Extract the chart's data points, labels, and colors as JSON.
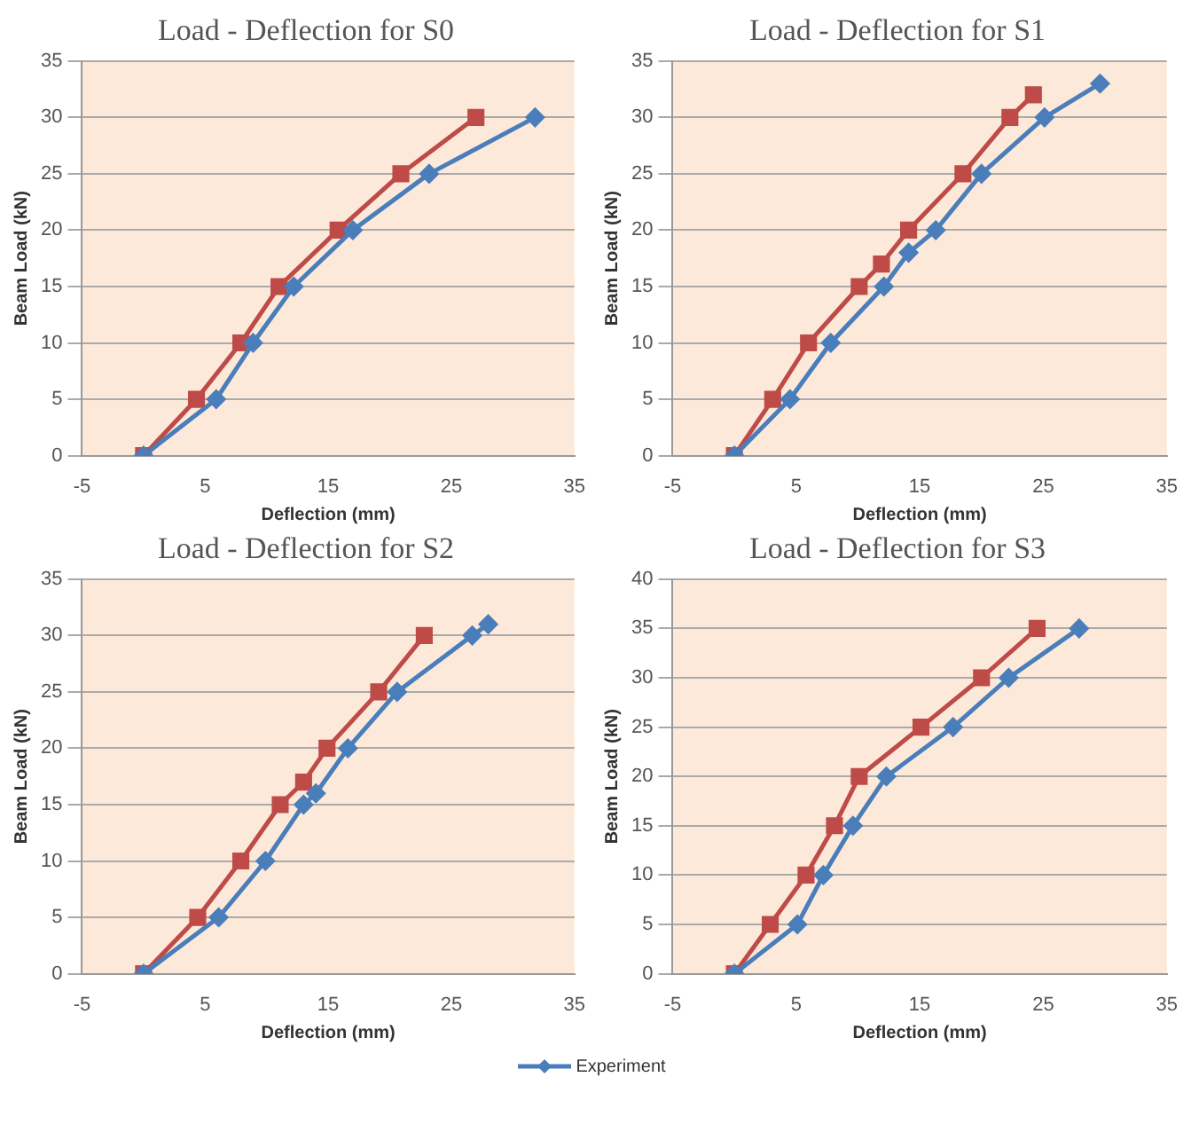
{
  "chart_data": [
    {
      "type": "line",
      "title": "Load - Deflection for S0",
      "xlabel": "Deflection (mm)",
      "ylabel": "Beam Load (kN)",
      "xlim": [
        -5,
        35
      ],
      "xticks": [
        -5,
        5,
        15,
        25,
        35
      ],
      "ylim": [
        0,
        35
      ],
      "yticks": [
        0,
        5,
        10,
        15,
        20,
        25,
        30,
        35
      ],
      "grid": "y",
      "series": [
        {
          "color": "#4a7ebb",
          "marker": "diamond",
          "x": [
            0,
            5.9,
            8.9,
            12.2,
            17,
            23.2,
            31.8
          ],
          "values": [
            0,
            5,
            10,
            15,
            20,
            25,
            30
          ]
        },
        {
          "color": "#be4b48",
          "marker": "square",
          "x": [
            0,
            4.3,
            7.9,
            11,
            15.8,
            20.9,
            27
          ],
          "values": [
            0,
            5,
            10,
            15,
            20,
            25,
            30
          ]
        }
      ]
    },
    {
      "type": "line",
      "title": "Load - Deflection for S1",
      "xlabel": "Deflection (mm)",
      "ylabel": "Beam Load (kN)",
      "xlim": [
        -5,
        35
      ],
      "xticks": [
        -5,
        5,
        15,
        25,
        35
      ],
      "ylim": [
        0,
        35
      ],
      "yticks": [
        0,
        5,
        10,
        15,
        20,
        25,
        30,
        35
      ],
      "grid": "y",
      "series": [
        {
          "color": "#4a7ebb",
          "marker": "diamond",
          "x": [
            0,
            4.5,
            7.8,
            12.1,
            14.1,
            16.3,
            20,
            25.1,
            29.6
          ],
          "values": [
            0,
            5,
            10,
            15,
            18,
            20,
            25,
            30,
            33
          ]
        },
        {
          "color": "#be4b48",
          "marker": "square",
          "x": [
            0,
            3.1,
            6,
            10.1,
            11.9,
            14.1,
            18.5,
            22.3,
            24.2
          ],
          "values": [
            0,
            5,
            10,
            15,
            17,
            20,
            25,
            30,
            32
          ]
        }
      ]
    },
    {
      "type": "line",
      "title": "Load - Deflection for S2",
      "xlabel": "Deflection (mm)",
      "ylabel": "Beam Load (kN)",
      "xlim": [
        -5,
        35
      ],
      "xticks": [
        -5,
        5,
        15,
        25,
        35
      ],
      "ylim": [
        0,
        35
      ],
      "yticks": [
        0,
        5,
        10,
        15,
        20,
        25,
        30,
        35
      ],
      "grid": "y",
      "series": [
        {
          "color": "#4a7ebb",
          "marker": "diamond",
          "x": [
            0,
            6.1,
            9.9,
            13,
            14,
            16.6,
            20.6,
            26.7,
            28
          ],
          "values": [
            0,
            5,
            10,
            15,
            16,
            20,
            25,
            30,
            31
          ]
        },
        {
          "color": "#be4b48",
          "marker": "square",
          "x": [
            0,
            4.4,
            7.9,
            11.1,
            13,
            14.9,
            19.1,
            22.8
          ],
          "values": [
            0,
            5,
            10,
            15,
            17,
            20,
            25,
            30
          ]
        }
      ]
    },
    {
      "type": "line",
      "title": "Load - Deflection for S3",
      "xlabel": "Deflection (mm)",
      "ylabel": "Beam Load (kN)",
      "xlim": [
        -5,
        35
      ],
      "xticks": [
        -5,
        5,
        15,
        25,
        35
      ],
      "ylim": [
        0,
        40
      ],
      "yticks": [
        0,
        5,
        10,
        15,
        20,
        25,
        30,
        35,
        40
      ],
      "grid": "y",
      "legend": "bottom",
      "series": [
        {
          "name": "Experiment",
          "color": "#4a7ebb",
          "marker": "diamond",
          "x": [
            0,
            5.1,
            7.2,
            9.6,
            12.3,
            17.7,
            22.2,
            27.9
          ],
          "values": [
            0,
            5,
            10,
            15,
            20,
            25,
            30,
            35
          ]
        },
        {
          "color": "#be4b48",
          "marker": "square",
          "x": [
            0,
            2.9,
            5.8,
            8.1,
            10.1,
            15.1,
            20,
            24.5
          ],
          "values": [
            0,
            5,
            10,
            15,
            20,
            25,
            30,
            35
          ]
        }
      ]
    }
  ]
}
